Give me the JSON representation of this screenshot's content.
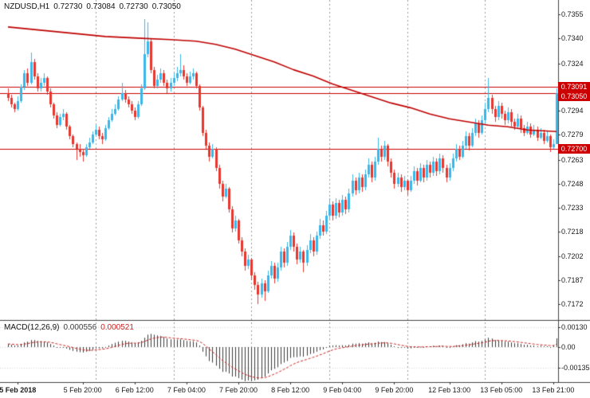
{
  "header": {
    "symbol_period": "NZDUSD,H1",
    "open": "0.72730",
    "high": "0.73084",
    "low": "0.72730",
    "close": "0.73050"
  },
  "macd_header": {
    "label": "MACD(12,26,9)",
    "main_value": "0.000556",
    "signal_value": "0.000521"
  },
  "colors": {
    "background": "#ffffff",
    "bull": "#3ab7e9",
    "bear": "#e8362e",
    "ma_line": "#c00000",
    "hline": "#cc0000",
    "badge_bg": "#cc0000",
    "badge_text": "#ffffff",
    "histogram": "#3c3c3c",
    "signal": "#cc2222",
    "axis_text": "#1a1a1a",
    "grid_dash": "#9a9a9a",
    "frame": "#444444"
  },
  "chart_data": {
    "type": "candlestick+macd",
    "symbol": "NZDUSD",
    "timeframe": "H1",
    "price_axis": {
      "top_value": 0.7355,
      "bottom_value": 0.7172,
      "labels": [
        "0.7355",
        "0.7340",
        "0.7324",
        "0.7309",
        "0.7294",
        "0.7279",
        "0.7263",
        "0.7248",
        "0.7233",
        "0.7218",
        "0.7202",
        "0.7187",
        "0.7172"
      ]
    },
    "time_axis": {
      "labels": [
        {
          "text": "5 Feb 2018",
          "index": 3
        },
        {
          "text": "5 Feb 20:00",
          "index": 23
        },
        {
          "text": "6 Feb 12:00",
          "index": 39
        },
        {
          "text": "7 Feb 04:00",
          "index": 55
        },
        {
          "text": "7 Feb 20:00",
          "index": 71
        },
        {
          "text": "8 Feb 12:00",
          "index": 87
        },
        {
          "text": "9 Feb 04:00",
          "index": 103
        },
        {
          "text": "9 Feb 20:00",
          "index": 119
        },
        {
          "text": "12 Feb 13:00",
          "index": 136
        },
        {
          "text": "13 Feb 05:00",
          "index": 152
        },
        {
          "text": "13 Feb 21:00",
          "index": 168
        }
      ]
    },
    "price_lines": [
      {
        "label": "0.73091",
        "price": 0.73091
      },
      {
        "label": "0.73050",
        "price": 0.7305
      },
      {
        "label": "0.72700",
        "price": 0.727
      }
    ],
    "period_separator_indices": [
      27,
      51,
      75,
      99,
      123,
      147
    ],
    "first_open": 0.7305,
    "candles": [
      [
        0.7308,
        0.73,
        0.7302
      ],
      [
        0.7304,
        0.7296,
        0.7298
      ],
      [
        0.7299,
        0.7293,
        0.7295
      ],
      [
        0.7303,
        0.7294,
        0.73
      ],
      [
        0.7311,
        0.7299,
        0.7309
      ],
      [
        0.732,
        0.7307,
        0.7318
      ],
      [
        0.7321,
        0.731,
        0.7312
      ],
      [
        0.7331,
        0.7311,
        0.7325
      ],
      [
        0.7327,
        0.7314,
        0.7316
      ],
      [
        0.7318,
        0.7306,
        0.7308
      ],
      [
        0.7315,
        0.7306,
        0.7312
      ],
      [
        0.7318,
        0.731,
        0.7315
      ],
      [
        0.7316,
        0.7304,
        0.7306
      ],
      [
        0.7308,
        0.7296,
        0.7298
      ],
      [
        0.7299,
        0.7289,
        0.7291
      ],
      [
        0.7293,
        0.7283,
        0.7285
      ],
      [
        0.7292,
        0.7284,
        0.729
      ],
      [
        0.7295,
        0.7288,
        0.7292
      ],
      [
        0.7293,
        0.7282,
        0.7284
      ],
      [
        0.7285,
        0.7276,
        0.7278
      ],
      [
        0.7279,
        0.7271,
        0.7273
      ],
      [
        0.7274,
        0.7263,
        0.727
      ],
      [
        0.7273,
        0.7265,
        0.7268
      ],
      [
        0.727,
        0.7262,
        0.7266
      ],
      [
        0.7273,
        0.7265,
        0.7271
      ],
      [
        0.7277,
        0.727,
        0.7274
      ],
      [
        0.7281,
        0.7273,
        0.7279
      ],
      [
        0.7285,
        0.7278,
        0.7282
      ],
      [
        0.7284,
        0.7276,
        0.7278
      ],
      [
        0.728,
        0.7273,
        0.7276
      ],
      [
        0.7285,
        0.7275,
        0.7283
      ],
      [
        0.729,
        0.7282,
        0.7288
      ],
      [
        0.7295,
        0.7287,
        0.7292
      ],
      [
        0.7298,
        0.7291,
        0.7295
      ],
      [
        0.7303,
        0.7294,
        0.7301
      ],
      [
        0.7312,
        0.73,
        0.7305
      ],
      [
        0.7307,
        0.7299,
        0.7301
      ],
      [
        0.7303,
        0.7296,
        0.7298
      ],
      [
        0.73,
        0.7292,
        0.7294
      ],
      [
        0.7296,
        0.7288,
        0.729
      ],
      [
        0.73,
        0.7289,
        0.7298
      ],
      [
        0.7311,
        0.7297,
        0.7308
      ],
      [
        0.7352,
        0.7307,
        0.733
      ],
      [
        0.735,
        0.7328,
        0.7338
      ],
      [
        0.734,
        0.7318,
        0.732
      ],
      [
        0.7322,
        0.7308,
        0.731
      ],
      [
        0.7317,
        0.7308,
        0.7314
      ],
      [
        0.7321,
        0.7312,
        0.7318
      ],
      [
        0.732,
        0.731,
        0.7312
      ],
      [
        0.7314,
        0.7305,
        0.7308
      ],
      [
        0.7315,
        0.7306,
        0.7312
      ],
      [
        0.7318,
        0.731,
        0.7315
      ],
      [
        0.7322,
        0.7313,
        0.7318
      ],
      [
        0.733,
        0.7316,
        0.732
      ],
      [
        0.7323,
        0.7314,
        0.7316
      ],
      [
        0.7318,
        0.731,
        0.7312
      ],
      [
        0.7319,
        0.7311,
        0.7316
      ],
      [
        0.7321,
        0.7314,
        0.7318
      ],
      [
        0.7319,
        0.7308,
        0.731
      ],
      [
        0.7311,
        0.7294,
        0.7296
      ],
      [
        0.7297,
        0.7278,
        0.728
      ],
      [
        0.7282,
        0.727,
        0.7272
      ],
      [
        0.7274,
        0.7262,
        0.7265
      ],
      [
        0.7273,
        0.7264,
        0.727
      ],
      [
        0.7271,
        0.7256,
        0.7258
      ],
      [
        0.726,
        0.7245,
        0.7248
      ],
      [
        0.725,
        0.7237,
        0.724
      ],
      [
        0.7248,
        0.7239,
        0.7245
      ],
      [
        0.7246,
        0.723,
        0.7232
      ],
      [
        0.7234,
        0.7217,
        0.722
      ],
      [
        0.7228,
        0.7218,
        0.7225
      ],
      [
        0.7226,
        0.721,
        0.7212
      ],
      [
        0.7214,
        0.7202,
        0.7205
      ],
      [
        0.7207,
        0.7193,
        0.7196
      ],
      [
        0.7203,
        0.7194,
        0.72
      ],
      [
        0.7201,
        0.7187,
        0.719
      ],
      [
        0.7192,
        0.7181,
        0.7184
      ],
      [
        0.7186,
        0.7172,
        0.7178
      ],
      [
        0.7188,
        0.7176,
        0.7185
      ],
      [
        0.7187,
        0.7174,
        0.718
      ],
      [
        0.7193,
        0.7179,
        0.719
      ],
      [
        0.7199,
        0.7188,
        0.7196
      ],
      [
        0.7198,
        0.7185,
        0.7188
      ],
      [
        0.7198,
        0.7186,
        0.7195
      ],
      [
        0.7208,
        0.7193,
        0.7205
      ],
      [
        0.7207,
        0.7195,
        0.7198
      ],
      [
        0.7211,
        0.7196,
        0.7208
      ],
      [
        0.7219,
        0.7206,
        0.7215
      ],
      [
        0.7217,
        0.7205,
        0.7208
      ],
      [
        0.721,
        0.7197,
        0.72
      ],
      [
        0.7208,
        0.7198,
        0.7205
      ],
      [
        0.7206,
        0.7192,
        0.7198
      ],
      [
        0.7209,
        0.7196,
        0.7206
      ],
      [
        0.7216,
        0.7204,
        0.7212
      ],
      [
        0.7214,
        0.7202,
        0.7205
      ],
      [
        0.7218,
        0.7203,
        0.7215
      ],
      [
        0.7226,
        0.7213,
        0.7222
      ],
      [
        0.7225,
        0.7215,
        0.7218
      ],
      [
        0.7231,
        0.7216,
        0.7228
      ],
      [
        0.7239,
        0.7226,
        0.7235
      ],
      [
        0.7237,
        0.7225,
        0.7228
      ],
      [
        0.7239,
        0.7226,
        0.7236
      ],
      [
        0.7238,
        0.7227,
        0.723
      ],
      [
        0.7241,
        0.7228,
        0.7238
      ],
      [
        0.724,
        0.7229,
        0.7232
      ],
      [
        0.7245,
        0.723,
        0.7242
      ],
      [
        0.7254,
        0.724,
        0.725
      ],
      [
        0.7252,
        0.7241,
        0.7244
      ],
      [
        0.7255,
        0.7242,
        0.7252
      ],
      [
        0.7254,
        0.7243,
        0.7246
      ],
      [
        0.7257,
        0.7244,
        0.7254
      ],
      [
        0.7264,
        0.7252,
        0.726
      ],
      [
        0.7262,
        0.7249,
        0.7252
      ],
      [
        0.7265,
        0.725,
        0.7262
      ],
      [
        0.7277,
        0.726,
        0.727
      ],
      [
        0.7272,
        0.7262,
        0.7265
      ],
      [
        0.7275,
        0.7263,
        0.7272
      ],
      [
        0.7273,
        0.7259,
        0.7262
      ],
      [
        0.7264,
        0.7252,
        0.7255
      ],
      [
        0.7257,
        0.7245,
        0.7248
      ],
      [
        0.7255,
        0.7246,
        0.7252
      ],
      [
        0.7254,
        0.7243,
        0.7246
      ],
      [
        0.7253,
        0.7244,
        0.725
      ],
      [
        0.7251,
        0.7241,
        0.7244
      ],
      [
        0.7253,
        0.7243,
        0.725
      ],
      [
        0.7259,
        0.7248,
        0.7256
      ],
      [
        0.7258,
        0.7247,
        0.725
      ],
      [
        0.7261,
        0.7249,
        0.7258
      ],
      [
        0.726,
        0.7249,
        0.7252
      ],
      [
        0.7263,
        0.725,
        0.726
      ],
      [
        0.7262,
        0.7252,
        0.7255
      ],
      [
        0.7265,
        0.7253,
        0.7262
      ],
      [
        0.7264,
        0.7253,
        0.7256
      ],
      [
        0.7267,
        0.7254,
        0.7264
      ],
      [
        0.7266,
        0.7255,
        0.7258
      ],
      [
        0.726,
        0.7249,
        0.7252
      ],
      [
        0.7261,
        0.725,
        0.7258
      ],
      [
        0.7267,
        0.7256,
        0.7264
      ],
      [
        0.7273,
        0.7262,
        0.727
      ],
      [
        0.7272,
        0.7263,
        0.7265
      ],
      [
        0.7275,
        0.7264,
        0.7272
      ],
      [
        0.7281,
        0.727,
        0.7278
      ],
      [
        0.728,
        0.7269,
        0.7272
      ],
      [
        0.7283,
        0.7271,
        0.728
      ],
      [
        0.7289,
        0.7278,
        0.7286
      ],
      [
        0.7288,
        0.7277,
        0.728
      ],
      [
        0.7291,
        0.7279,
        0.7288
      ],
      [
        0.7299,
        0.7286,
        0.7295
      ],
      [
        0.7315,
        0.7293,
        0.7302
      ],
      [
        0.7304,
        0.7292,
        0.7295
      ],
      [
        0.7297,
        0.7287,
        0.729
      ],
      [
        0.73,
        0.7288,
        0.7297
      ],
      [
        0.7299,
        0.7289,
        0.7292
      ],
      [
        0.7294,
        0.7285,
        0.7288
      ],
      [
        0.7296,
        0.7286,
        0.7293
      ],
      [
        0.7295,
        0.7284,
        0.7287
      ],
      [
        0.7289,
        0.7282,
        0.7284
      ],
      [
        0.7292,
        0.7283,
        0.7289
      ],
      [
        0.7291,
        0.728,
        0.7283
      ],
      [
        0.7285,
        0.7278,
        0.728
      ],
      [
        0.7287,
        0.7279,
        0.7284
      ],
      [
        0.7286,
        0.7277,
        0.7279
      ],
      [
        0.7285,
        0.7278,
        0.7282
      ],
      [
        0.7284,
        0.7275,
        0.7277
      ],
      [
        0.7283,
        0.7276,
        0.728
      ],
      [
        0.7282,
        0.7273,
        0.7275
      ],
      [
        0.7281,
        0.7274,
        0.7278
      ],
      [
        0.7279,
        0.7268,
        0.7271
      ],
      [
        0.7276,
        0.727,
        0.7273
      ],
      [
        0.73084,
        0.7273,
        0.7305
      ]
    ],
    "ma_points": [
      [
        0,
        0.7347
      ],
      [
        10,
        0.7345
      ],
      [
        20,
        0.7343
      ],
      [
        30,
        0.7341
      ],
      [
        40,
        0.734
      ],
      [
        50,
        0.7339
      ],
      [
        58,
        0.7338
      ],
      [
        64,
        0.7336
      ],
      [
        70,
        0.7333
      ],
      [
        76,
        0.7329
      ],
      [
        82,
        0.7325
      ],
      [
        88,
        0.732
      ],
      [
        94,
        0.7316
      ],
      [
        100,
        0.7311
      ],
      [
        106,
        0.7307
      ],
      [
        112,
        0.7303
      ],
      [
        118,
        0.7299
      ],
      [
        124,
        0.7296
      ],
      [
        130,
        0.7292
      ],
      [
        136,
        0.7289
      ],
      [
        142,
        0.7287
      ],
      [
        148,
        0.7285
      ],
      [
        154,
        0.7284
      ],
      [
        160,
        0.7282
      ],
      [
        169,
        0.7281
      ]
    ],
    "macd": {
      "params": "12,26,9",
      "axis_labels": [
        {
          "text": "0.00130",
          "value": 0.0013
        },
        {
          "text": "0.00",
          "value": 0
        },
        {
          "text": "-0.00135",
          "value": -0.00135
        }
      ],
      "values": [
        0.0002,
        0.00015,
        0.0001,
        0.0001,
        0.0002,
        0.0003,
        0.00035,
        0.00045,
        0.00045,
        0.0004,
        0.00038,
        0.00036,
        0.0003,
        0.0002,
        0.0001,
        0,
        -5e-05,
        -5e-05,
        -0.0001,
        -0.00018,
        -0.00025,
        -0.0003,
        -0.00033,
        -0.00035,
        -0.0003,
        -0.00025,
        -0.00018,
        -0.0001,
        -8e-05,
        -8e-05,
        0,
        0.0001,
        0.0002,
        0.00028,
        0.00035,
        0.0004,
        0.0004,
        0.00035,
        0.0003,
        0.00025,
        0.0003,
        0.0004,
        0.0006,
        0.0008,
        0.00085,
        0.0008,
        0.00075,
        0.00072,
        0.00065,
        0.00055,
        0.0005,
        0.00048,
        0.00048,
        0.0005,
        0.00045,
        0.0004,
        0.00038,
        0.00038,
        0.0003,
        0.0001,
        -0.0003,
        -0.0006,
        -0.0009,
        -0.001,
        -0.0012,
        -0.0014,
        -0.0016,
        -0.0016,
        -0.0017,
        -0.0019,
        -0.0019,
        -0.002,
        -0.0021,
        -0.0022,
        -0.00215,
        -0.0022,
        -0.00215,
        -0.0021,
        -0.002,
        -0.0019,
        -0.0017,
        -0.0015,
        -0.0014,
        -0.0013,
        -0.0011,
        -0.001,
        -0.0009,
        -0.0007,
        -0.00065,
        -0.00065,
        -0.0006,
        -0.00062,
        -0.00055,
        -0.00045,
        -0.0004,
        -0.0003,
        -0.0002,
        -0.00015,
        0,
        0.0001,
        0.0001,
        0.00012,
        0.0001,
        0.00012,
        0.0001,
        0.00015,
        0.00022,
        0.00022,
        0.00025,
        0.00022,
        0.00025,
        0.0003,
        0.00025,
        0.00028,
        0.00035,
        0.00032,
        0.00032,
        0.00025,
        0.00015,
        5e-05,
        0,
        -5e-05,
        -5e-05,
        -0.0001,
        -8e-05,
        0,
        -3e-05,
        2e-05,
        0,
        5e-05,
        5e-05,
        8e-05,
        6e-05,
        0.0001,
        8e-05,
        0,
        0,
        5e-05,
        0.00012,
        0.00012,
        0.00018,
        0.00025,
        0.00022,
        0.0003,
        0.00038,
        0.00035,
        0.0004,
        0.0005,
        0.0006,
        0.00055,
        0.00045,
        0.00045,
        0.0004,
        0.00035,
        0.00035,
        0.0003,
        0.00025,
        0.00025,
        0.0002,
        0.00015,
        0.00015,
        0.0001,
        0.0001,
        5e-05,
        8e-05,
        5e-05,
        5e-05,
        0,
        0.0001,
        0.00056
      ]
    }
  }
}
